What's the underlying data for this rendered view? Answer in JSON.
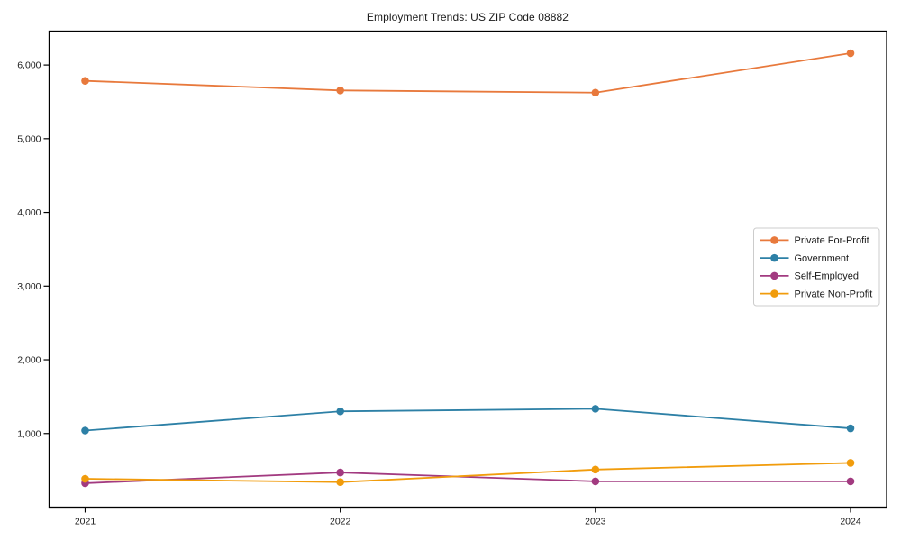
{
  "title": "Employment Trends: US ZIP Code 08882",
  "chart_data": {
    "type": "line",
    "title": "Employment Trends: US ZIP Code 08882",
    "x": [
      "2021",
      "2022",
      "2023",
      "2024"
    ],
    "series": [
      {
        "name": "Private For-Profit",
        "color": "#e8793c",
        "values": [
          5785,
          5655,
          5625,
          6160
        ]
      },
      {
        "name": "Government",
        "color": "#2d80a6",
        "values": [
          1040,
          1300,
          1335,
          1070
        ]
      },
      {
        "name": "Self-Employed",
        "color": "#a23a80",
        "values": [
          325,
          470,
          350,
          350
        ]
      },
      {
        "name": "Private Non-Profit",
        "color": "#f19c0c",
        "values": [
          385,
          340,
          510,
          600
        ]
      }
    ],
    "xlabel": "",
    "ylabel": "",
    "yticks": [
      1000,
      2000,
      3000,
      4000,
      5000,
      6000
    ],
    "ytick_labels": [
      "1,000",
      "2,000",
      "3,000",
      "4,000",
      "5,000",
      "6,000"
    ],
    "ylim": [
      0,
      6460
    ],
    "grid": false,
    "marker": "circle",
    "legend_position": "center-right",
    "axis_color": "#000000",
    "text_color": "#1a1a1a",
    "legend_border_color": "#cccccc",
    "background_color": "#ffffff"
  }
}
